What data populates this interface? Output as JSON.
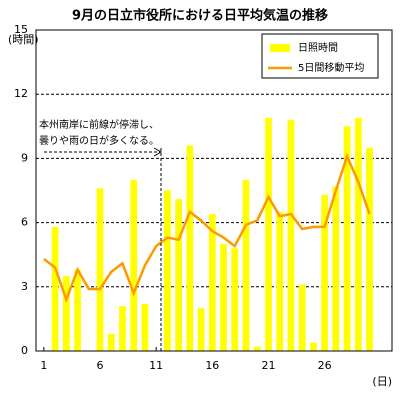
{
  "chart_data": {
    "type": "bar-line",
    "title": "9月の日立市役所における日平均気温の推移",
    "y_label": "(時間)",
    "x_label": "(日)",
    "x": [
      1,
      2,
      3,
      4,
      5,
      6,
      7,
      8,
      9,
      10,
      11,
      12,
      13,
      14,
      15,
      16,
      17,
      18,
      19,
      20,
      21,
      22,
      23,
      24,
      25,
      26,
      27,
      28,
      29,
      30
    ],
    "xlim": [
      0.3,
      32
    ],
    "xticks": [
      1,
      6,
      11,
      16,
      21,
      26
    ],
    "ylim": [
      0,
      15
    ],
    "yticks": [
      0,
      3,
      6,
      9,
      12,
      15
    ],
    "grid": true,
    "legend": "top-right",
    "annotation": [
      "本州南岸に前線が停滞し、",
      "曇りや雨の日が多くなる。"
    ],
    "series": [
      {
        "name": "日照時間",
        "type": "bar",
        "color": "#ffff00",
        "values": [
          0,
          5.8,
          3.5,
          3.8,
          0,
          7.6,
          0.8,
          2.1,
          8.0,
          2.2,
          0,
          7.5,
          7.1,
          9.6,
          2.0,
          6.4,
          5.0,
          4.8,
          8.0,
          0.2,
          10.9,
          6.5,
          10.8,
          3.1,
          0.4,
          7.3,
          7.7,
          10.5,
          10.9,
          9.5
        ]
      },
      {
        "name": "5日間移動平均",
        "type": "line",
        "color": "#ff9900",
        "values": [
          4.3,
          3.9,
          2.4,
          3.8,
          2.9,
          2.9,
          3.7,
          4.1,
          2.7,
          4.0,
          4.9,
          5.3,
          5.2,
          6.5,
          6.1,
          5.6,
          5.3,
          4.9,
          5.9,
          6.1,
          7.2,
          6.3,
          6.4,
          5.7,
          5.8,
          5.8,
          7.5,
          9.1,
          7.9,
          6.4
        ]
      }
    ]
  }
}
